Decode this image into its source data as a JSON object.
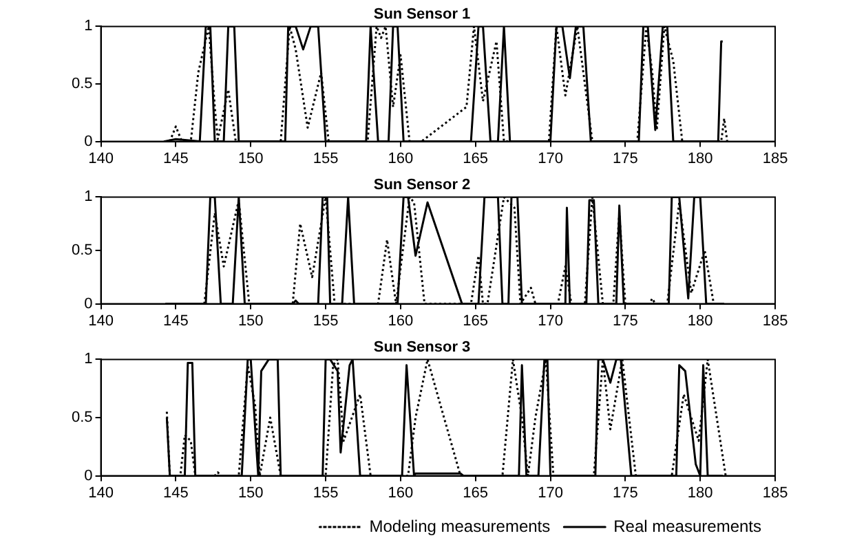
{
  "chart_data": [
    {
      "type": "line",
      "title": "Sun Sensor 1",
      "xlim": [
        140,
        185
      ],
      "xticks": [
        140,
        145,
        150,
        155,
        160,
        165,
        170,
        175,
        180,
        185
      ],
      "ylim": [
        0,
        1
      ],
      "yticks": [
        0,
        0.5,
        1
      ],
      "grid": false,
      "legend": false,
      "series": [
        {
          "color": "#000000",
          "line_style": "dotted",
          "x": [
            144.6,
            145.0,
            145.4,
            146.0,
            146.5,
            147.2,
            147.6,
            147.8,
            148.5,
            149.0,
            152.0,
            152.6,
            153.0,
            153.8,
            154.7,
            155.2,
            157.8,
            158.4,
            158.7,
            159.0,
            159.5,
            160.0,
            160.6,
            161.4,
            164.4,
            164.9,
            165.5,
            166.4,
            166.9,
            169.9,
            170.4,
            171.0,
            171.8,
            172.8,
            175.8,
            176.4,
            176.8,
            177.1,
            177.6,
            178.2,
            178.8,
            181.4,
            181.6,
            181.8
          ],
          "values": [
            0,
            0.13,
            0,
            0,
            0.6,
            1,
            0.3,
            0.02,
            0.45,
            0,
            0,
            1,
            0.8,
            0.12,
            0.6,
            0,
            0,
            1,
            0.9,
            1,
            0.3,
            0.75,
            0,
            0,
            0.3,
            1,
            0.35,
            0.87,
            0,
            0,
            1,
            0.4,
            1,
            0,
            0,
            1,
            0.6,
            0.1,
            1,
            0.7,
            0,
            0,
            0.2,
            0
          ]
        },
        {
          "color": "#000000",
          "line_style": "solid",
          "x": [
            144.2,
            145.0,
            146.6,
            147.0,
            147.3,
            147.6,
            148.2,
            148.5,
            148.9,
            149.2,
            152.3,
            152.5,
            153.0,
            153.5,
            154.0,
            154.5,
            155.0,
            157.7,
            158.0,
            158.5,
            159.2,
            159.5,
            159.8,
            160.2,
            164.7,
            165.2,
            165.5,
            166.0,
            166.5,
            166.9,
            167.3,
            170.0,
            170.4,
            170.8,
            171.3,
            171.7,
            172.2,
            172.7,
            175.9,
            176.2,
            176.5,
            177.0,
            177.5,
            177.8,
            178.2,
            181.2,
            181.4,
            181.5
          ],
          "values": [
            0,
            0.02,
            0,
            1,
            1,
            0,
            0,
            1,
            1,
            0,
            0,
            1,
            1,
            0.8,
            1,
            1,
            0,
            0,
            1,
            0,
            0,
            1,
            1,
            0,
            0,
            1,
            1,
            0,
            0,
            1,
            0,
            0,
            1,
            1,
            0.55,
            1,
            1,
            0,
            0,
            1,
            1,
            0.1,
            1,
            1,
            0,
            0,
            0.87,
            0.87
          ]
        }
      ]
    },
    {
      "type": "line",
      "title": "Sun Sensor 2",
      "xlim": [
        140,
        185
      ],
      "xticks": [
        140,
        145,
        150,
        155,
        160,
        165,
        170,
        175,
        180,
        185
      ],
      "ylim": [
        0,
        1
      ],
      "yticks": [
        0,
        0.5,
        1
      ],
      "grid": false,
      "legend": false,
      "series": [
        {
          "color": "#000000",
          "line_style": "dotted",
          "x": [
            146.9,
            147.6,
            148.2,
            149.2,
            149.9,
            152.8,
            153.3,
            154.1,
            155.0,
            155.6,
            158.5,
            159.1,
            159.7,
            160.6,
            160.9,
            161.6,
            164.7,
            165.2,
            165.5,
            165.8,
            166.9,
            167.6,
            168.0,
            168.7,
            169.0,
            170.5,
            171.0,
            171.4,
            172.3,
            172.8,
            173.5,
            174.2,
            174.6,
            175.0,
            176.6,
            176.8,
            177.0,
            177.8,
            178.6,
            179.4,
            180.3,
            180.9
          ],
          "values": [
            0,
            0.85,
            0.35,
            0.97,
            0,
            0,
            0.75,
            0.25,
            1,
            0,
            0,
            0.6,
            0,
            1,
            0.95,
            0,
            0,
            0.45,
            0,
            0,
            1,
            0.9,
            0,
            0.15,
            0,
            0,
            0.35,
            0,
            0,
            1,
            0,
            0,
            0.85,
            0,
            0,
            0.05,
            0,
            0,
            0.95,
            0.1,
            0.5,
            0
          ]
        },
        {
          "color": "#000000",
          "line_style": "solid",
          "x": [
            144.3,
            147.0,
            147.3,
            147.6,
            148.0,
            148.8,
            149.2,
            149.6,
            152.8,
            153.0,
            153.2,
            154.5,
            154.8,
            155.1,
            155.3,
            156.1,
            156.5,
            156.9,
            159.8,
            160.2,
            160.5,
            161.0,
            161.8,
            164.1,
            165.2,
            165.6,
            166.5,
            166.8,
            167.2,
            167.4,
            167.8,
            168.1,
            171.0,
            171.1,
            171.3,
            172.4,
            172.6,
            172.9,
            173.2,
            174.4,
            174.6,
            174.9,
            177.9,
            178.1,
            178.6,
            179.2,
            179.6,
            180.0,
            180.4,
            181.6
          ],
          "values": [
            0,
            0,
            1,
            1,
            0,
            0,
            1,
            0,
            0,
            0.03,
            0,
            0,
            1,
            1,
            0,
            0,
            1,
            0,
            0,
            1,
            1,
            0.45,
            0.95,
            0,
            0,
            1,
            1,
            0,
            0,
            1,
            1,
            0,
            0,
            0.9,
            0,
            0,
            0.97,
            0.97,
            0,
            0,
            0.92,
            0,
            0,
            1,
            1,
            0.05,
            1,
            1,
            0,
            0
          ]
        }
      ]
    },
    {
      "type": "line",
      "title": "Sun Sensor 3",
      "xlim": [
        140,
        185
      ],
      "xticks": [
        140,
        145,
        150,
        155,
        160,
        165,
        170,
        175,
        180,
        185
      ],
      "ylim": [
        0,
        1
      ],
      "yticks": [
        0,
        0.5,
        1
      ],
      "grid": false,
      "legend": "bottom right",
      "series": [
        {
          "name": "Modeling measurements",
          "color": "#000000",
          "line_style": "dotted",
          "x": [
            144.4,
            144.6,
            145.3,
            145.6,
            146.0,
            146.3,
            147.6,
            147.8,
            148.0,
            149.2,
            149.8,
            150.3,
            150.6,
            151.3,
            152.0,
            155.0,
            155.5,
            155.8,
            156.2,
            157.3,
            158.0,
            160.5,
            161.0,
            161.8,
            164.0,
            166.8,
            167.5,
            168.1,
            168.5,
            169.0,
            169.7,
            170.2,
            172.9,
            173.5,
            174.0,
            174.8,
            175.7,
            178.1,
            178.9,
            179.9,
            180.5,
            181.7
          ],
          "values": [
            0.55,
            0,
            0,
            0.35,
            0.3,
            0,
            0,
            0.03,
            0,
            0,
            0.95,
            0.6,
            0,
            0.5,
            0,
            0,
            0.95,
            1,
            0.3,
            0.7,
            0,
            0,
            0.5,
            1,
            0,
            0,
            1,
            0.5,
            0,
            0.5,
            1,
            0,
            0,
            1,
            0.4,
            1,
            0,
            0,
            0.7,
            0.3,
            1,
            0
          ]
        },
        {
          "name": "Real measurements",
          "color": "#000000",
          "line_style": "solid",
          "x": [
            144.4,
            144.6,
            145.6,
            145.8,
            146.1,
            146.3,
            149.4,
            149.8,
            150.0,
            150.5,
            150.7,
            151.2,
            151.8,
            152.0,
            154.8,
            155.0,
            155.3,
            155.8,
            156.0,
            156.6,
            156.8,
            157.3,
            160.1,
            160.4,
            160.9,
            161.0,
            164.0,
            164.2,
            167.9,
            168.1,
            168.4,
            169.2,
            169.6,
            169.8,
            170.0,
            173.0,
            173.2,
            173.5,
            174.0,
            174.4,
            174.7,
            175.4,
            178.4,
            178.6,
            179.0,
            179.7,
            180.0,
            180.2,
            180.5,
            181.5
          ],
          "values": [
            0.5,
            0,
            0,
            0.97,
            0.97,
            0,
            0,
            1,
            1,
            0,
            0.9,
            1,
            1,
            0,
            0,
            1,
            1,
            0.9,
            0.2,
            0.95,
            1,
            0,
            0,
            0.95,
            0,
            0.02,
            0.02,
            0,
            0,
            0.95,
            0,
            0,
            1,
            1,
            0,
            0,
            1,
            1,
            0.8,
            1,
            1,
            0,
            0,
            0.95,
            0.9,
            0.1,
            0,
            0.95,
            0,
            0
          ]
        }
      ]
    }
  ]
}
